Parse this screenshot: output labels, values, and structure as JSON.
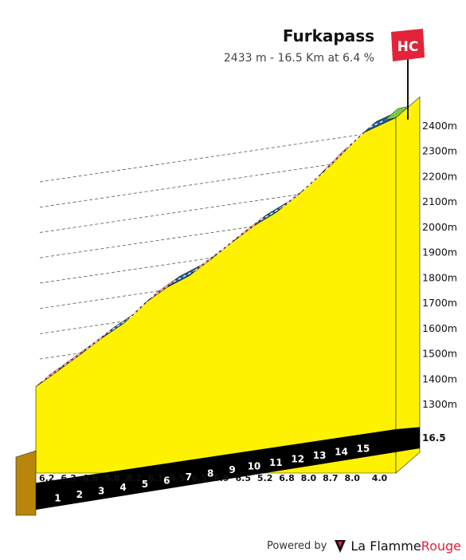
{
  "colors": {
    "profile_fill": "#fff200",
    "base_face": "#b8860b",
    "base_band": "#000000",
    "grid": "#555555",
    "grades": {
      "steep": "#e2233a",
      "moderate": "#1c5a8c",
      "summit": "#7ac943"
    },
    "badge": "#e2233a"
  },
  "climb": {
    "name": "Furkapass",
    "summary": "2433 m - 16.5 Km at 6.4 %",
    "category": "HC"
  },
  "chart_data": {
    "type": "area",
    "title": "Furkapass",
    "subtitle": "2433 m - 16.5 Km at 6.4 %",
    "x_unit": "km",
    "y_unit": "m",
    "xlim": [
      0,
      16.5
    ],
    "ylim": [
      1300,
      2433
    ],
    "y_ticks": [
      1300,
      1400,
      1500,
      1600,
      1700,
      1800,
      1900,
      2000,
      2100,
      2200,
      2300,
      2400
    ],
    "y_tick_labels": [
      "1300m",
      "1400m",
      "1500m",
      "1600m",
      "1700m",
      "1800m",
      "1900m",
      "2000m",
      "2100m",
      "2200m",
      "2300m",
      "2400m"
    ],
    "km_markers": [
      "1",
      "2",
      "3",
      "4",
      "5",
      "6",
      "7",
      "8",
      "9",
      "10",
      "11",
      "12",
      "13",
      "14",
      "15"
    ],
    "end_label": "16.5",
    "segment_lengths_km": [
      1,
      1,
      1,
      1,
      1,
      1,
      1,
      1,
      1,
      1,
      1,
      1,
      1,
      1,
      1,
      1.5
    ],
    "gradients": [
      6.2,
      6.3,
      6.6,
      5.8,
      8.2,
      6.1,
      4.5,
      6.5,
      6.9,
      6.5,
      5.2,
      6.8,
      8.0,
      8.7,
      8.0,
      4.0
    ],
    "gradient_labels": [
      "6.2",
      "6.3",
      "6.6",
      "5.8",
      "8.2",
      "6.1",
      "4.5",
      "6.5",
      "6.9",
      "6.5",
      "5.2",
      "6.8",
      "8.0",
      "8.7",
      "8.0",
      "4.0"
    ],
    "grade_classes": [
      "steep",
      "steep",
      "steep",
      "moderate",
      "steep",
      "steep",
      "moderate",
      "steep",
      "steep",
      "steep",
      "moderate",
      "steep",
      "steep",
      "steep",
      "steep",
      "moderate"
    ],
    "summit_altitude": 2433,
    "grid": true
  },
  "footer": {
    "powered_by": "Powered by",
    "brand_part1": "La Flamme",
    "brand_part2": "Rouge",
    "logo_icon": "flame-icon"
  }
}
